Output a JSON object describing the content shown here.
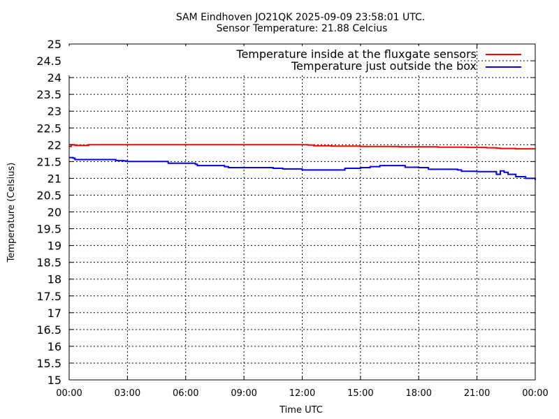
{
  "chart_data": {
    "type": "line",
    "title": "SAM Eindhoven JO21QK 2025-09-09 23:58:01 UTC.",
    "subtitle": "Sensor Temperature: 21.88 Celcius",
    "xlabel": "Time UTC",
    "ylabel": "Temperature (Celsius)",
    "ylim": [
      15,
      25
    ],
    "xlim_hours": [
      0,
      24
    ],
    "grid": true,
    "legend_position": "top-right",
    "yticks": [
      "15",
      "15.5",
      "16",
      "16.5",
      "17",
      "17.5",
      "18",
      "18.5",
      "19",
      "19.5",
      "20",
      "20.5",
      "21",
      "21.5",
      "22",
      "22.5",
      "23",
      "23.5",
      "24",
      "24.5",
      "25"
    ],
    "xticks": [
      "00:00",
      "03:00",
      "06:00",
      "09:00",
      "12:00",
      "15:00",
      "18:00",
      "21:00",
      "00:00"
    ],
    "series": [
      {
        "name": "Temperature inside at the fluxgate sensors",
        "color": "#ff0000",
        "x": [
          0,
          0.1,
          0.3,
          1,
          3,
          5,
          5.5,
          6,
          6.8,
          8,
          10,
          12,
          12.3,
          12.6,
          13,
          13.5,
          14,
          15,
          16,
          17,
          18,
          19,
          20,
          20.5,
          21,
          21.5,
          22,
          22.2,
          23,
          24
        ],
        "values": [
          21.95,
          22.0,
          21.98,
          22.0,
          22.0,
          22.0,
          22.0,
          22.0,
          22.0,
          22.0,
          22.0,
          22.0,
          21.99,
          21.97,
          21.97,
          21.96,
          21.96,
          21.95,
          21.95,
          21.94,
          21.94,
          21.93,
          21.93,
          21.92,
          21.92,
          21.91,
          21.9,
          21.89,
          21.88,
          21.88
        ]
      },
      {
        "name": "Temperature just outside the box",
        "color": "#0000ff",
        "x": [
          0,
          0.2,
          0.3,
          2.2,
          2.4,
          2.8,
          3,
          4.9,
          5.1,
          6.5,
          6.6,
          7.8,
          8,
          8.2,
          10,
          10.5,
          11,
          12,
          13,
          14,
          14.2,
          15,
          15.5,
          16,
          17,
          17.3,
          18,
          18.5,
          19,
          20,
          20.2,
          21,
          22,
          22.2,
          22.4,
          22.6,
          23,
          23.5,
          24
        ],
        "values": [
          21.62,
          21.6,
          21.56,
          21.56,
          21.53,
          21.52,
          21.5,
          21.5,
          21.45,
          21.42,
          21.38,
          21.38,
          21.35,
          21.32,
          21.32,
          21.3,
          21.28,
          21.25,
          21.25,
          21.25,
          21.3,
          21.32,
          21.35,
          21.38,
          21.38,
          21.33,
          21.32,
          21.27,
          21.27,
          21.25,
          21.21,
          21.2,
          21.12,
          21.22,
          21.18,
          21.12,
          21.05,
          21.0,
          20.95
        ]
      }
    ]
  }
}
